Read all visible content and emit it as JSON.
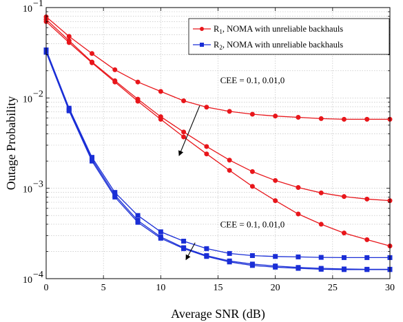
{
  "chart_data": {
    "type": "line",
    "xlabel": "Average SNR (dB)",
    "ylabel": "Outage Probability",
    "xlim": [
      0,
      30
    ],
    "ylim": [
      0.0001,
      0.1
    ],
    "yscale": "log",
    "x_ticks": [
      "0",
      "5",
      "10",
      "15",
      "20",
      "25",
      "30"
    ],
    "y_ticks": [
      {
        "value": 0.1,
        "base": "10",
        "exp": "−1"
      },
      {
        "value": 0.01,
        "base": "10",
        "exp": "−2"
      },
      {
        "value": 0.001,
        "base": "10",
        "exp": "−3"
      },
      {
        "value": 0.0001,
        "base": "10",
        "exp": "−4"
      }
    ],
    "grid": true,
    "legend_position": "top-right",
    "legend": [
      {
        "sym": "R",
        "sub": "1",
        "text": ", NOMA with unreliable backhauls",
        "color": "#e8161b",
        "marker": "circle"
      },
      {
        "sym": "R",
        "sub": "2",
        "text": ", NOMA with unreliable backhauls",
        "color": "#1a2ed6",
        "marker": "square"
      }
    ],
    "annotations": [
      {
        "text": "CEE = 0.1, 0.01,0",
        "x": 18,
        "y": 0.0145,
        "arrow_from": [
          13.4,
          0.0082
        ],
        "arrow_to": [
          11.6,
          0.0023
        ]
      },
      {
        "text": "CEE = 0.1, 0.01,0",
        "x": 18,
        "y": 0.00037,
        "arrow_from": [
          13.0,
          0.00025
        ],
        "arrow_to": [
          12.2,
          0.000162
        ]
      }
    ],
    "x": [
      0,
      2,
      4,
      6,
      8,
      10,
      12,
      14,
      16,
      18,
      20,
      22,
      24,
      26,
      28,
      30
    ],
    "series": [
      {
        "group": 1,
        "color": "#e8161b",
        "marker": "circle",
        "values": [
          0.079,
          0.048,
          0.031,
          0.0205,
          0.015,
          0.0118,
          0.0093,
          0.0079,
          0.0071,
          0.0066,
          0.0063,
          0.0061,
          0.0059,
          0.0058,
          0.0058,
          0.0058
        ]
      },
      {
        "group": 1,
        "color": "#e8161b",
        "marker": "circle",
        "values": [
          0.074,
          0.043,
          0.025,
          0.0155,
          0.0097,
          0.0062,
          0.0042,
          0.0029,
          0.00205,
          0.00153,
          0.00122,
          0.00102,
          0.00089,
          0.00081,
          0.00076,
          0.00073
        ]
      },
      {
        "group": 1,
        "color": "#e8161b",
        "marker": "circle",
        "values": [
          0.07,
          0.041,
          0.0245,
          0.015,
          0.0092,
          0.0058,
          0.0037,
          0.0024,
          0.00158,
          0.00105,
          0.00073,
          0.00052,
          0.0004,
          0.00032,
          0.00027,
          0.00023
        ]
      },
      {
        "group": 2,
        "color": "#1a2ed6",
        "marker": "square",
        "values": [
          0.034,
          0.0077,
          0.0022,
          0.0009,
          0.0005,
          0.00033,
          0.00026,
          0.000215,
          0.00019,
          0.00018,
          0.000176,
          0.000174,
          0.000172,
          0.000171,
          0.000171,
          0.000171
        ]
      },
      {
        "group": 2,
        "color": "#1a2ed6",
        "marker": "square",
        "values": [
          0.033,
          0.0074,
          0.0021,
          0.00084,
          0.00044,
          0.00029,
          0.00022,
          0.00018,
          0.000157,
          0.000145,
          0.000138,
          0.000133,
          0.00013,
          0.000128,
          0.000127,
          0.000127
        ]
      },
      {
        "group": 2,
        "color": "#1a2ed6",
        "marker": "square",
        "values": [
          0.032,
          0.0072,
          0.002,
          0.0008,
          0.00042,
          0.00028,
          0.000215,
          0.000176,
          0.000153,
          0.00014,
          0.000134,
          0.00013,
          0.000127,
          0.000126,
          0.000126,
          0.000126
        ]
      }
    ]
  }
}
